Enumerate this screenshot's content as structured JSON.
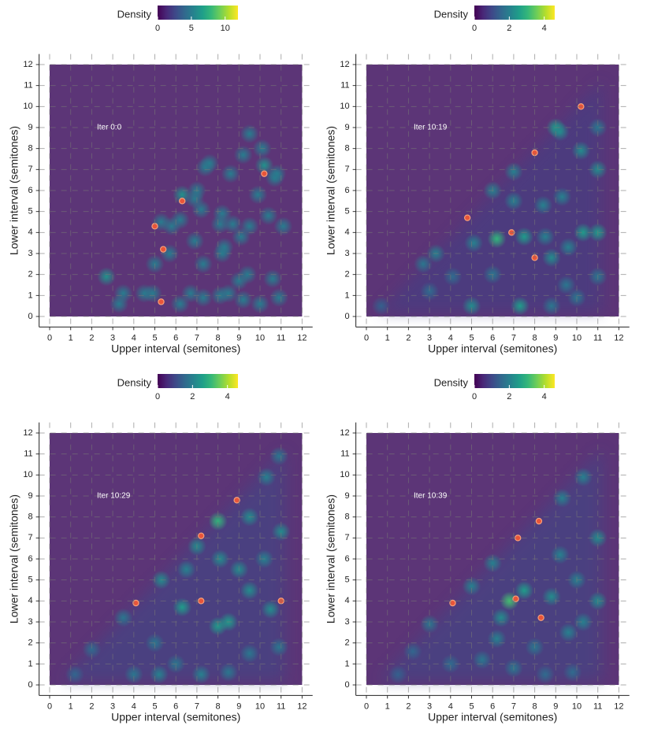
{
  "chart_data": [
    {
      "type": "density",
      "annotation": "Iter 0:0",
      "xlabel": "Upper interval (semitones)",
      "ylabel": "Lower interval (semitones)",
      "xlim": [
        -0.5,
        12.5
      ],
      "ylim": [
        -0.5,
        12.5
      ],
      "xticks": [
        0,
        1,
        2,
        3,
        4,
        5,
        6,
        7,
        8,
        9,
        10,
        11,
        12
      ],
      "yticks": [
        0,
        1,
        2,
        3,
        4,
        5,
        6,
        7,
        8,
        9,
        10,
        11,
        12
      ],
      "grid": true,
      "background": "#5c3577",
      "peak_color": "#e8553a",
      "colorbar": {
        "title": "Density",
        "lim": [
          0,
          11.9
        ],
        "ticks": [
          0,
          5,
          10
        ]
      },
      "blobs": {
        "x": [
          2.7,
          3.3,
          3.5,
          4.5,
          4.9,
          6.2,
          6.7,
          7.3,
          8.1,
          8.5,
          9.2,
          10.0,
          10.9,
          9.0,
          9.4,
          10.6,
          5.0,
          5.7,
          5.3,
          5.8,
          6.2,
          6.3,
          6.9,
          7.0,
          7.4,
          7.6,
          7.2,
          6.9,
          7.3,
          8.1,
          8.2,
          8.3,
          8.2,
          8.6,
          8.7,
          9.2,
          9.5,
          9.5,
          9.9,
          10.2,
          10.1,
          10.4,
          10.7,
          10.8,
          11.1,
          9.1
        ],
        "y": [
          1.9,
          0.6,
          1.1,
          1.1,
          1.1,
          0.6,
          1.1,
          0.9,
          1.0,
          1.1,
          0.8,
          0.6,
          0.9,
          1.7,
          2.0,
          1.8,
          2.5,
          3.0,
          4.5,
          4.3,
          4.6,
          5.8,
          5.6,
          6.0,
          7.1,
          7.3,
          5.1,
          3.6,
          2.5,
          4.4,
          4.9,
          3.3,
          3.0,
          6.8,
          4.4,
          7.7,
          8.7,
          4.3,
          5.8,
          7.2,
          8.0,
          4.8,
          6.6,
          6.8,
          4.3,
          3.8
        ],
        "density": [
          6,
          5,
          5,
          5,
          5,
          5,
          5,
          5,
          5,
          5,
          5,
          5,
          5,
          5,
          5,
          5,
          5,
          5,
          5,
          5,
          5,
          6,
          5,
          5,
          5,
          5,
          5,
          5,
          5,
          5,
          5,
          5,
          5,
          5,
          5,
          5,
          5,
          5,
          5,
          6,
          5,
          5,
          5,
          5,
          5,
          5
        ]
      },
      "peaks": {
        "x": [
          5.3,
          5.4,
          5.0,
          6.3,
          10.2
        ],
        "y": [
          0.7,
          3.2,
          4.3,
          5.5,
          6.8
        ]
      }
    },
    {
      "type": "density",
      "annotation": "Iter 10:19",
      "xlabel": "Upper interval (semitones)",
      "ylabel": "Lower interval (semitones)",
      "xlim": [
        -0.5,
        12.5
      ],
      "ylim": [
        -0.5,
        12.5
      ],
      "xticks": [
        0,
        1,
        2,
        3,
        4,
        5,
        6,
        7,
        8,
        9,
        10,
        11,
        12
      ],
      "yticks": [
        0,
        1,
        2,
        3,
        4,
        5,
        6,
        7,
        8,
        9,
        10,
        11,
        12
      ],
      "grid": true,
      "background": "#5c3577",
      "peak_color": "#e8553a",
      "colorbar": {
        "title": "Density",
        "lim": [
          0,
          4.6
        ],
        "ticks": [
          0,
          2,
          4
        ]
      },
      "region": {
        "x": [
          0.6,
          11.2,
          11.2
        ],
        "y": [
          0.2,
          11.2,
          0.2
        ],
        "density": 0.9
      },
      "blobs": {
        "x": [
          9.0,
          9.2,
          6.0,
          7.0,
          3.3,
          2.7,
          6.2,
          7.5,
          8.5,
          9.6,
          10.3,
          11.0,
          11.0,
          10.2,
          11.0,
          5.0,
          7.3,
          8.8,
          9.5,
          10.0,
          11.0,
          4.1,
          3.0,
          0.7,
          9.3,
          8.4,
          7.0,
          6.0,
          5.1,
          8.8
        ],
        "y": [
          9.0,
          8.8,
          6.0,
          6.9,
          3.0,
          2.5,
          3.7,
          3.8,
          3.8,
          3.3,
          4.0,
          4.0,
          7.0,
          7.9,
          9.0,
          0.5,
          0.5,
          0.5,
          1.5,
          0.9,
          1.9,
          1.9,
          1.2,
          0.5,
          5.7,
          5.3,
          5.5,
          2.0,
          3.5,
          2.8
        ],
        "density": [
          2.5,
          2.2,
          2,
          2,
          2,
          1.8,
          3,
          2.5,
          2,
          2,
          2.5,
          2.5,
          2.2,
          2.2,
          1.8,
          2.2,
          2.5,
          1.8,
          1.8,
          1.8,
          1.8,
          1.6,
          1.6,
          1.4,
          2,
          2,
          2,
          1.8,
          2,
          2.2
        ]
      },
      "peaks": {
        "x": [
          10.2,
          8.0,
          4.8,
          6.9,
          8.0
        ],
        "y": [
          10.0,
          7.8,
          4.7,
          4.0,
          2.8
        ]
      }
    },
    {
      "type": "density",
      "annotation": "Iter 10:29",
      "xlabel": "Upper interval (semitones)",
      "ylabel": "Lower interval (semitones)",
      "xlim": [
        -0.5,
        12.5
      ],
      "ylim": [
        -0.5,
        12.5
      ],
      "xticks": [
        0,
        1,
        2,
        3,
        4,
        5,
        6,
        7,
        8,
        9,
        10,
        11,
        12
      ],
      "yticks": [
        0,
        1,
        2,
        3,
        4,
        5,
        6,
        7,
        8,
        9,
        10,
        11,
        12
      ],
      "grid": true,
      "background": "#5c3577",
      "peak_color": "#e8553a",
      "colorbar": {
        "title": "Density",
        "lim": [
          0,
          4.6
        ],
        "ticks": [
          0,
          2,
          4
        ]
      },
      "region": {
        "x": [
          0.6,
          11.2,
          11.2
        ],
        "y": [
          0.2,
          11.2,
          0.2
        ],
        "density": 1.0
      },
      "blobs": {
        "x": [
          8.0,
          7.0,
          5.3,
          3.5,
          6.3,
          8.5,
          8.0,
          9.5,
          10.5,
          11.0,
          9.5,
          10.2,
          9.0,
          6.5,
          5.0,
          5.2,
          7.2,
          4.0,
          1.2,
          2.0,
          9.5,
          10.9,
          10.3,
          10.9,
          8.1,
          6.0,
          8.5
        ],
        "y": [
          7.8,
          6.6,
          5.0,
          3.2,
          3.7,
          3.0,
          2.8,
          4.5,
          3.6,
          7.3,
          8.0,
          6.0,
          5.5,
          5.5,
          2.0,
          0.5,
          0.5,
          0.5,
          0.5,
          1.7,
          1.5,
          1.8,
          9.9,
          10.9,
          6.0,
          1.0,
          0.6
        ],
        "density": [
          3,
          2.2,
          2.2,
          1.8,
          2.5,
          2.5,
          2.5,
          2.2,
          2.2,
          2.2,
          2.2,
          2,
          2.2,
          2,
          1.8,
          2,
          2,
          1.8,
          1.5,
          1.6,
          1.8,
          1.8,
          2,
          1.8,
          2.2,
          1.8,
          1.8
        ]
      },
      "peaks": {
        "x": [
          8.9,
          7.2,
          4.1,
          7.2,
          11.0
        ],
        "y": [
          8.8,
          7.1,
          3.9,
          4.0,
          4.0
        ]
      }
    },
    {
      "type": "density",
      "annotation": "Iter 10:39",
      "xlabel": "Upper interval (semitones)",
      "ylabel": "Lower interval (semitones)",
      "xlim": [
        -0.5,
        12.5
      ],
      "ylim": [
        -0.5,
        12.5
      ],
      "xticks": [
        0,
        1,
        2,
        3,
        4,
        5,
        6,
        7,
        8,
        9,
        10,
        11,
        12
      ],
      "yticks": [
        0,
        1,
        2,
        3,
        4,
        5,
        6,
        7,
        8,
        9,
        10,
        11,
        12
      ],
      "grid": true,
      "background": "#5c3577",
      "peak_color": "#e8553a",
      "colorbar": {
        "title": "Density",
        "lim": [
          0,
          4.6
        ],
        "ticks": [
          0,
          2,
          4
        ]
      },
      "region": {
        "x": [
          0.6,
          11.2,
          11.2
        ],
        "y": [
          0.2,
          11.2,
          0.2
        ],
        "density": 1.0
      },
      "blobs": {
        "x": [
          6.8,
          7.5,
          5.0,
          3.0,
          6.0,
          9.3,
          10.3,
          11.0,
          11.0,
          10.0,
          9.2,
          8.8,
          9.6,
          10.3,
          6.2,
          5.5,
          7.0,
          8.5,
          9.8,
          4.0,
          2.2,
          1.5,
          6.4,
          8.0
        ],
        "y": [
          4.0,
          4.5,
          4.7,
          2.9,
          5.8,
          8.9,
          9.9,
          7.0,
          4.0,
          5.0,
          6.2,
          4.2,
          2.5,
          3.0,
          2.2,
          1.2,
          0.8,
          0.5,
          0.6,
          1.0,
          1.6,
          0.5,
          3.2,
          1.8
        ],
        "density": [
          3.2,
          2.5,
          2,
          1.8,
          2,
          2,
          2,
          2.2,
          2.2,
          2,
          2,
          2.2,
          2,
          2,
          2,
          1.8,
          1.8,
          1.6,
          1.6,
          1.6,
          1.5,
          1.4,
          2.2,
          1.8
        ]
      },
      "peaks": {
        "x": [
          8.2,
          7.2,
          4.1,
          7.1,
          8.3
        ],
        "y": [
          7.8,
          7.0,
          3.9,
          4.1,
          3.2
        ]
      }
    }
  ]
}
